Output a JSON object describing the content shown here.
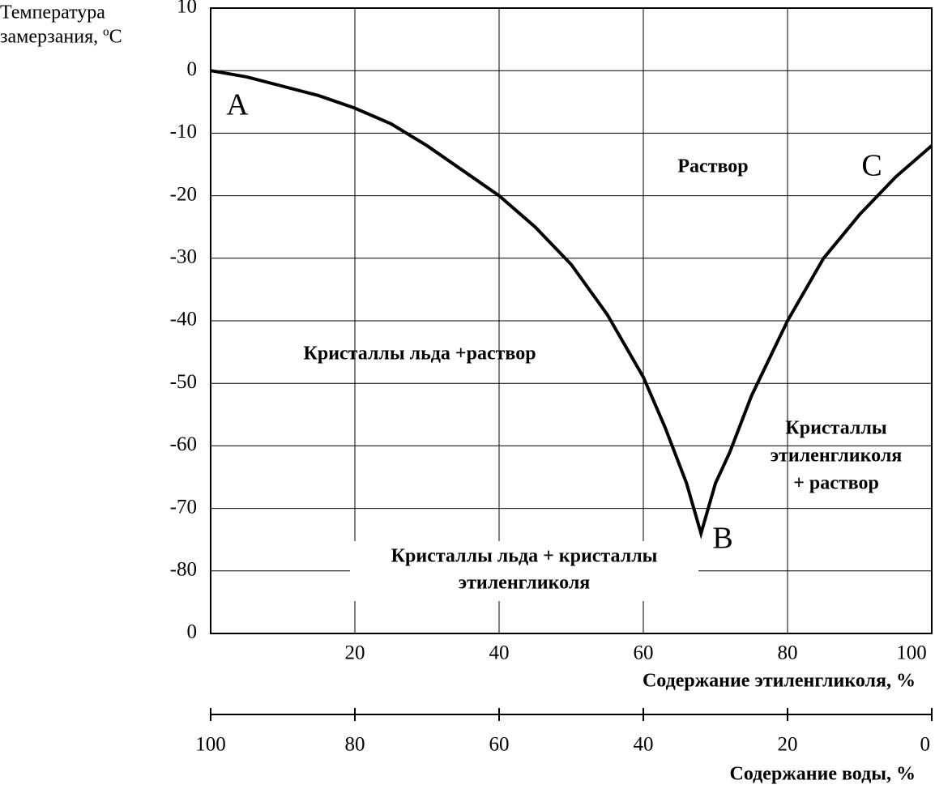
{
  "chart_data": {
    "type": "line",
    "y_label": [
      "Температура",
      "замерзания, ºC"
    ],
    "x_label": "Содержание этиленгликоля, %",
    "x2_label": "Содержание воды, %",
    "x": [
      0,
      5,
      10,
      15,
      20,
      25,
      30,
      35,
      40,
      45,
      50,
      55,
      60,
      63,
      66,
      68,
      70,
      72,
      75,
      80,
      85,
      90,
      95,
      100
    ],
    "series": [
      {
        "color": "#000000",
        "values": [
          0,
          -1,
          -2.5,
          -4,
          -6,
          -8.5,
          -12,
          -16,
          -20,
          -25,
          -31,
          -39,
          -49,
          -57,
          -66,
          -74,
          -66,
          -61,
          -52,
          -40,
          -30,
          -23,
          -17,
          -12
        ]
      }
    ],
    "xlim": [
      0,
      100
    ],
    "xticks": [
      20,
      40,
      60,
      80,
      100
    ],
    "x2lim": [
      100,
      0
    ],
    "x2ticks": [
      100,
      80,
      60,
      40,
      20,
      0
    ],
    "ylim": [
      -90,
      10
    ],
    "yticks": [
      10,
      0,
      -10,
      -20,
      -30,
      -40,
      -50,
      -60,
      -70,
      -80,
      {
        "value": -90,
        "label": "0"
      }
    ],
    "grid": true,
    "point_labels": [
      "A",
      "B",
      "C"
    ],
    "annotations": [
      [
        "Раствор"
      ],
      [
        "Кристаллы льда +раствор"
      ],
      [
        "Кристаллы",
        "этиленгликоля",
        "+ раствор"
      ],
      [
        "Кристаллы льда + кристаллы",
        "этиленгликоля"
      ]
    ]
  }
}
